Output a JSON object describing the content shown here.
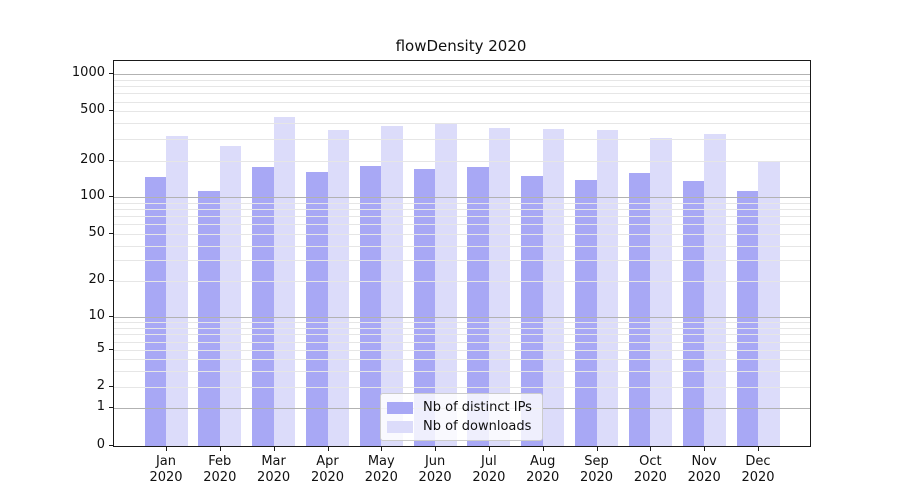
{
  "title": "flowDensity 2020",
  "colors": {
    "ips_bar": "#a8a8f5",
    "downloads_bar": "#dcdcfa",
    "grid_major": "#b2b2b2",
    "grid_minor": "#e6e6e6",
    "spine": "#1a1a1a",
    "text": "#111111",
    "legend_border": "#cccccc"
  },
  "chart_data": {
    "type": "bar",
    "title": "flowDensity 2020",
    "months": [
      "Jan",
      "Feb",
      "Mar",
      "Apr",
      "May",
      "Jun",
      "Jul",
      "Aug",
      "Sep",
      "Oct",
      "Nov",
      "Dec"
    ],
    "year": "2020",
    "categories": [
      "Jan 2020",
      "Feb 2020",
      "Mar 2020",
      "Apr 2020",
      "May 2020",
      "Jun 2020",
      "Jul 2020",
      "Aug 2020",
      "Sep 2020",
      "Oct 2020",
      "Nov 2020",
      "Dec 2020"
    ],
    "series": [
      {
        "name": "Nb of distinct IPs",
        "values": [
          148,
          113,
          177,
          160,
          181,
          170,
          178,
          149,
          138,
          159,
          136,
          112
        ]
      },
      {
        "name": "Nb of downloads",
        "values": [
          315,
          264,
          450,
          355,
          381,
          397,
          367,
          360,
          357,
          306,
          330,
          200
        ]
      }
    ],
    "yscale": "symlog",
    "y_ticks": [
      0,
      1,
      2,
      5,
      10,
      20,
      50,
      100,
      200,
      500,
      1000
    ],
    "ylim": [
      0,
      1150
    ],
    "grid": "on",
    "legend_position": "lower center"
  }
}
